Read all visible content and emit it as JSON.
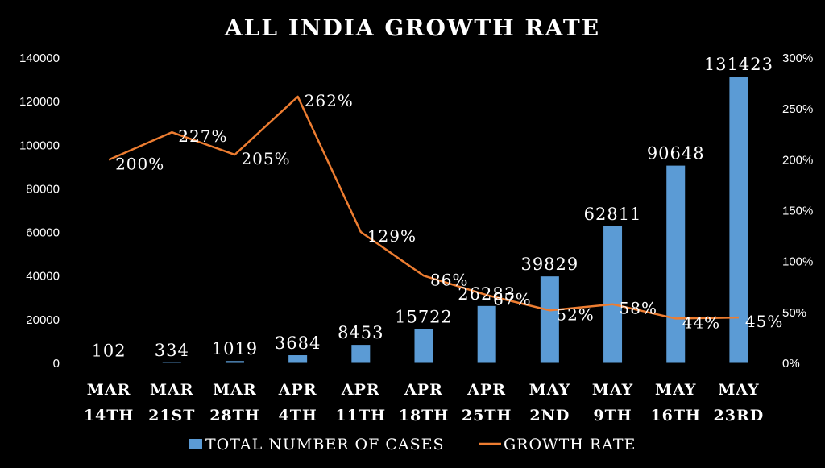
{
  "chart_data": {
    "type": "bar",
    "title": "ALL INDIA GROWTH RATE",
    "categories": [
      [
        "MAR",
        "14TH"
      ],
      [
        "MAR",
        "21ST"
      ],
      [
        "MAR",
        "28TH"
      ],
      [
        "APR",
        "4TH"
      ],
      [
        "APR",
        "11TH"
      ],
      [
        "APR",
        "18TH"
      ],
      [
        "APR",
        "25TH"
      ],
      [
        "MAY",
        "2ND"
      ],
      [
        "MAY",
        "9TH"
      ],
      [
        "MAY",
        "16TH"
      ],
      [
        "MAY",
        "23RD"
      ]
    ],
    "series": [
      {
        "name": "TOTAL NUMBER OF CASES",
        "type": "bar",
        "axis": "left",
        "color": "#5b9bd5",
        "values": [
          102,
          334,
          1019,
          3684,
          8453,
          15722,
          26283,
          39829,
          62811,
          90648,
          131423
        ],
        "labels": [
          "102",
          "334",
          "1019",
          "3684",
          "8453",
          "15722",
          "26283",
          "39829",
          "62811",
          "90648",
          "131423"
        ]
      },
      {
        "name": "GROWTH RATE",
        "type": "line",
        "axis": "right",
        "color": "#ed7d31",
        "values": [
          200,
          227,
          205,
          262,
          129,
          86,
          67,
          52,
          58,
          44,
          45
        ],
        "labels": [
          "200%",
          "227%",
          "205%",
          "262%",
          "129%",
          "86%",
          "67%",
          "52%",
          "58%",
          "44%",
          "45%"
        ]
      }
    ],
    "y_left": {
      "range": [
        0,
        140000
      ],
      "ticks": [
        "0",
        "20000",
        "40000",
        "60000",
        "80000",
        "100000",
        "120000",
        "140000"
      ]
    },
    "y_right": {
      "range": [
        0,
        300
      ],
      "unit": "%",
      "ticks": [
        "0%",
        "50%",
        "100%",
        "150%",
        "200%",
        "250%",
        "300%"
      ]
    },
    "grid": false,
    "legend_position": "bottom",
    "colors": {
      "background": "#000000",
      "text": "#ffffff",
      "bars": "#5b9bd5",
      "line": "#ed7d31"
    }
  }
}
